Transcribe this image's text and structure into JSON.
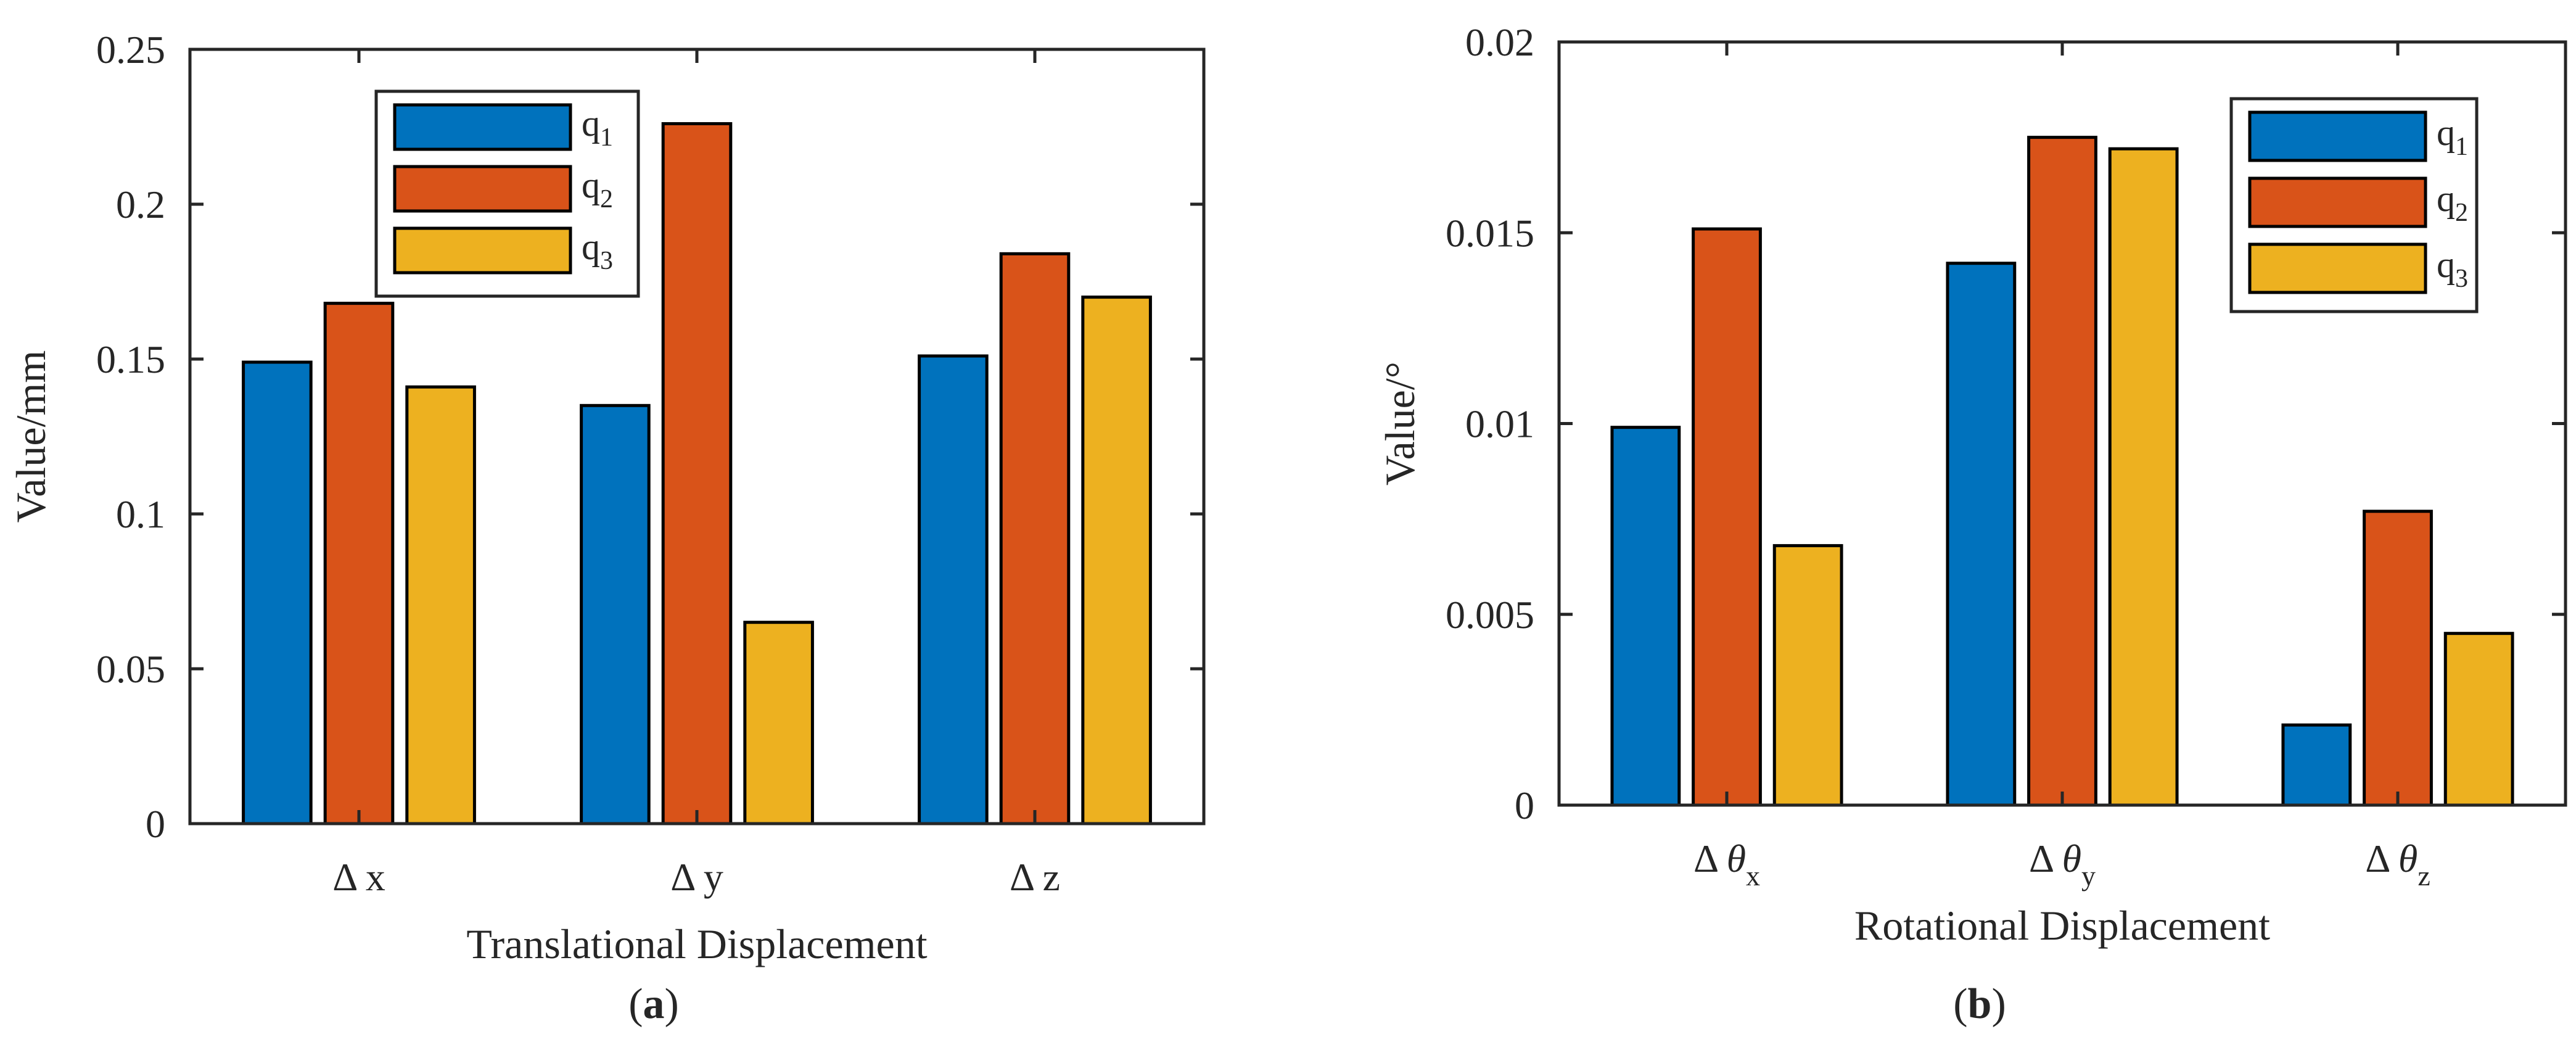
{
  "chart_data": [
    {
      "type": "bar",
      "panel_label": "a",
      "title": "",
      "xlabel": "Translational Displacement",
      "ylabel": "Value/mm",
      "ylim": [
        0,
        0.25
      ],
      "yticks": [
        "0",
        "0.05",
        "0.1",
        "0.15",
        "0.2",
        "0.25"
      ],
      "ytick_values": [
        0,
        0.05,
        0.1,
        0.15,
        0.2,
        0.25
      ],
      "categories": [
        {
          "prefix": "Δ",
          "main": "x",
          "sub": ""
        },
        {
          "prefix": "Δ",
          "main": "y",
          "sub": ""
        },
        {
          "prefix": "Δ",
          "main": "z",
          "sub": ""
        }
      ],
      "series": [
        {
          "name": "q",
          "sub": "1",
          "color": "#0072BD",
          "values": [
            0.149,
            0.135,
            0.151
          ]
        },
        {
          "name": "q",
          "sub": "2",
          "color": "#D95319",
          "values": [
            0.168,
            0.226,
            0.184
          ]
        },
        {
          "name": "q",
          "sub": "3",
          "color": "#EDB120",
          "values": [
            0.141,
            0.065,
            0.17
          ]
        }
      ],
      "legend_position": "top-center",
      "grid": false
    },
    {
      "type": "bar",
      "panel_label": "b",
      "title": "",
      "xlabel": "Rotational Displacement",
      "ylabel": "Value/°",
      "ylim": [
        0,
        0.02
      ],
      "yticks": [
        "0",
        "0.005",
        "0.01",
        "0.015",
        "0.02"
      ],
      "ytick_values": [
        0,
        0.005,
        0.01,
        0.015,
        0.02
      ],
      "categories": [
        {
          "prefix": "Δ",
          "main": "θ",
          "sub": "x"
        },
        {
          "prefix": "Δ",
          "main": "θ",
          "sub": "y"
        },
        {
          "prefix": "Δ",
          "main": "θ",
          "sub": "z"
        }
      ],
      "series": [
        {
          "name": "q",
          "sub": "1",
          "color": "#0072BD",
          "values": [
            0.0099,
            0.0142,
            0.0021
          ]
        },
        {
          "name": "q",
          "sub": "2",
          "color": "#D95319",
          "values": [
            0.0151,
            0.0175,
            0.0077
          ]
        },
        {
          "name": "q",
          "sub": "3",
          "color": "#EDB120",
          "values": [
            0.0068,
            0.0172,
            0.0045
          ]
        }
      ],
      "legend_position": "top-right",
      "grid": false
    }
  ]
}
